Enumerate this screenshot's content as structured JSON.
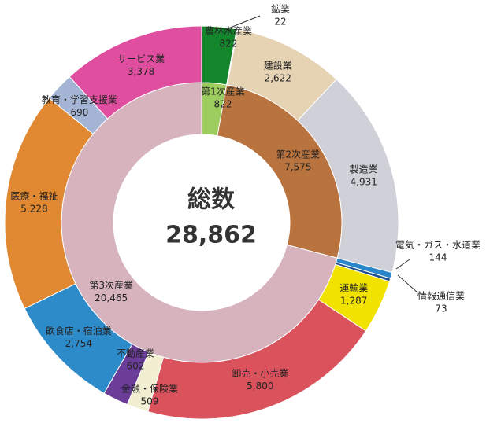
{
  "chart_data": {
    "type": "donut",
    "title": "総数",
    "total": 28862,
    "total_label": "28,862",
    "inner": {
      "categories": [
        "第1次産業",
        "第2次産業",
        "第3次産業"
      ],
      "values": [
        822,
        7575,
        20465
      ],
      "value_labels": [
        "822",
        "7,575",
        "20,465"
      ],
      "colors": [
        "#9ccd5e",
        "#b9733e",
        "#d6b3bd"
      ]
    },
    "outer": {
      "categories": [
        "農林水産業",
        "鉱業",
        "建設業",
        "製造業",
        "電気・ガス・水道業",
        "情報通信業",
        "運輸業",
        "卸売・小売業",
        "金融・保険業",
        "不動産業",
        "飲食店・宿泊業",
        "医療・福祉",
        "教育・学習支援業",
        "サービス業"
      ],
      "values": [
        822,
        22,
        2622,
        4931,
        144,
        73,
        1287,
        5800,
        509,
        602,
        2754,
        5228,
        690,
        3378
      ],
      "value_labels": [
        "822",
        "22",
        "2,622",
        "4,931",
        "144",
        "73",
        "1,287",
        "5,800",
        "509",
        "602",
        "2,754",
        "5,228",
        "690",
        "3,378"
      ],
      "colors": [
        "#13862c",
        "#6dbb45",
        "#e6d3b4",
        "#cfd0d8",
        "#2a86c8",
        "#1d4f8f",
        "#f2e200",
        "#d9525c",
        "#f2eed2",
        "#6b3d98",
        "#2e8bc9",
        "#e08932",
        "#a4b4d4",
        "#e04f9f"
      ]
    }
  }
}
